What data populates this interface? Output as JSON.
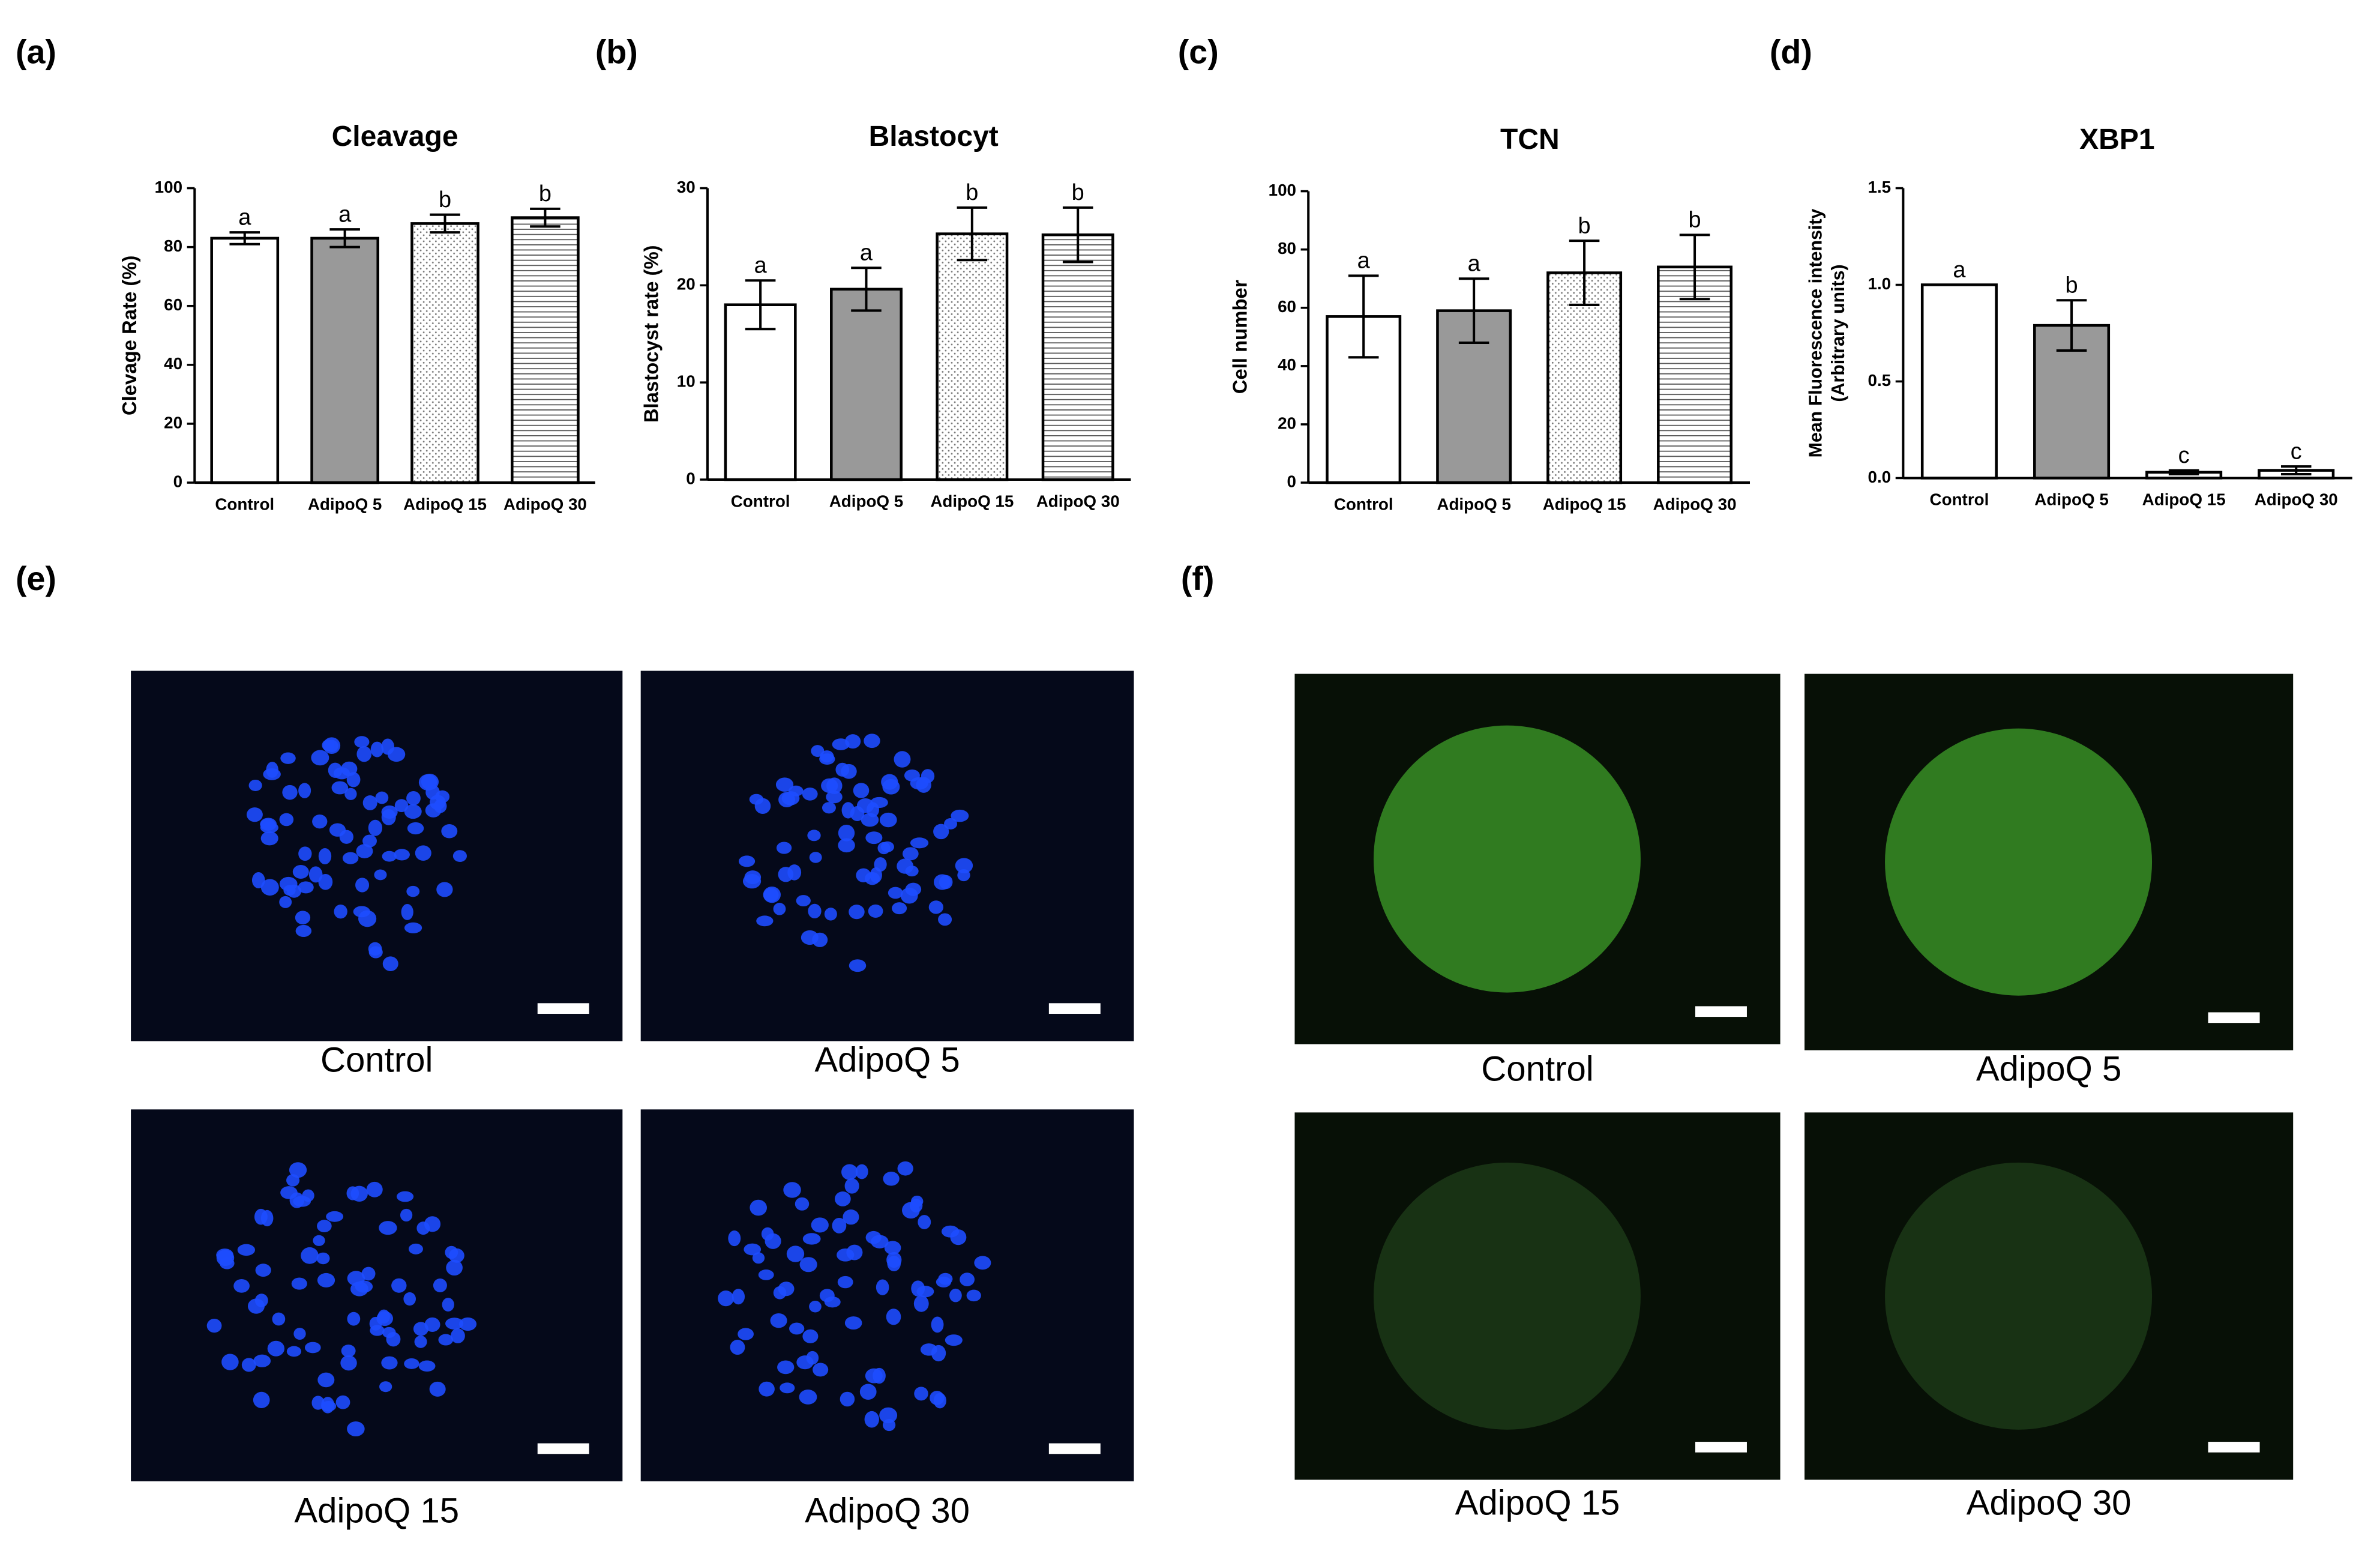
{
  "chart_data": [
    {
      "type": "bar",
      "panel": "(a)",
      "title": "Cleavage",
      "ylabel": "Clevage Rate (%)",
      "categories": [
        "Control",
        "AdipoQ 5",
        "AdipoQ 15",
        "AdipoQ 30"
      ],
      "values": [
        83,
        83,
        88,
        90
      ],
      "errors": [
        2,
        3,
        3,
        3
      ],
      "annotations": [
        "a",
        "a",
        "b",
        "b"
      ],
      "fills": [
        "#ffffff",
        "#999999",
        "dots",
        "lines"
      ],
      "ylim": [
        0,
        100
      ],
      "yticks": [
        0,
        20,
        40,
        60,
        80,
        100
      ]
    },
    {
      "type": "bar",
      "panel": "(b)",
      "title": "Blastocyt",
      "ylabel": "Blastocyst rate (%)",
      "categories": [
        "Control",
        "AdipoQ 5",
        "AdipoQ 15",
        "AdipoQ 30"
      ],
      "values": [
        18,
        19.6,
        25.3,
        25.2
      ],
      "errors": [
        2.5,
        2.2,
        2.7,
        2.8
      ],
      "annotations": [
        "a",
        "a",
        "b",
        "b"
      ],
      "fills": [
        "#ffffff",
        "#999999",
        "dots",
        "lines"
      ],
      "ylim": [
        0,
        30
      ],
      "yticks": [
        0,
        10,
        20,
        30
      ]
    },
    {
      "type": "bar",
      "panel": "(c)",
      "title": "TCN",
      "ylabel": "Cell number",
      "categories": [
        "Control",
        "AdipoQ 5",
        "AdipoQ 15",
        "AdipoQ 30"
      ],
      "values": [
        57,
        59,
        72,
        74
      ],
      "errors": [
        14,
        11,
        11,
        11
      ],
      "annotations": [
        "a",
        "a",
        "b",
        "b"
      ],
      "fills": [
        "#ffffff",
        "#999999",
        "dots",
        "lines"
      ],
      "ylim": [
        0,
        100
      ],
      "yticks": [
        0,
        20,
        40,
        60,
        80,
        100
      ]
    },
    {
      "type": "bar",
      "panel": "(d)",
      "title": "XBP1",
      "ylabel": [
        "Mean Fluorescence intensity",
        "(Arbitrary units)"
      ],
      "categories": [
        "Control",
        "AdipoQ 5",
        "AdipoQ 15",
        "AdipoQ 30"
      ],
      "values": [
        1.0,
        0.79,
        0.03,
        0.04
      ],
      "errors": [
        0,
        0.13,
        0.01,
        0.02
      ],
      "annotations": [
        "a",
        "b",
        "c",
        "c"
      ],
      "fills": [
        "#ffffff",
        "#999999",
        "#ffffff",
        "#ffffff"
      ],
      "ylim": [
        0,
        1.5
      ],
      "yticks": [
        {
          "value": 0,
          "label": "0.0"
        },
        0.5,
        {
          "value": 1,
          "label": "1.0"
        },
        1.5
      ]
    }
  ],
  "micrographs": [
    {
      "panel": "(e)",
      "color": "#1e4dff",
      "images": [
        "Control",
        "AdipoQ 5",
        "AdipoQ 15",
        "AdipoQ 30"
      ]
    },
    {
      "panel": "(f)",
      "colors": [
        "#3f9f2a",
        "#3f9f2a",
        "#1f3d1a",
        "#1f3d1a"
      ],
      "images": [
        "Control",
        "AdipoQ 5",
        "AdipoQ 15",
        "AdipoQ 30"
      ]
    }
  ]
}
